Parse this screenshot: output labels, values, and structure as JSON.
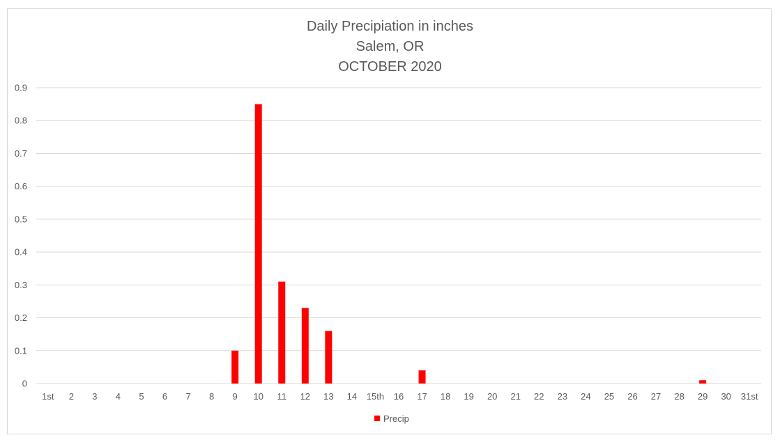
{
  "chart_data": {
    "type": "bar",
    "title": "Daily Precipiation in inches",
    "subtitle": [
      "Salem, OR",
      "OCTOBER 2020"
    ],
    "categories": [
      "1st",
      "2",
      "3",
      "4",
      "5",
      "6",
      "7",
      "8",
      "9",
      "10",
      "11",
      "12",
      "13",
      "14",
      "15th",
      "16",
      "17",
      "18",
      "19",
      "20",
      "21",
      "22",
      "23",
      "24",
      "25",
      "26",
      "27",
      "28",
      "29",
      "30",
      "31st"
    ],
    "series": [
      {
        "name": "Precip",
        "color": "#ff0000",
        "values": [
          0,
          0,
          0,
          0,
          0,
          0,
          0,
          0,
          0.1,
          0.85,
          0.31,
          0.23,
          0.16,
          0,
          0,
          0,
          0.04,
          0,
          0,
          0,
          0,
          0,
          0,
          0,
          0,
          0,
          0,
          0,
          0.01,
          0,
          0
        ]
      }
    ],
    "ylim": [
      0,
      0.9
    ],
    "yticks": [
      "0",
      "0.1",
      "0.2",
      "0.3",
      "0.4",
      "0.5",
      "0.6",
      "0.7",
      "0.8",
      "0.9"
    ],
    "xlabel": "",
    "ylabel": "",
    "grid": "horizontal",
    "legend_position": "bottom"
  }
}
